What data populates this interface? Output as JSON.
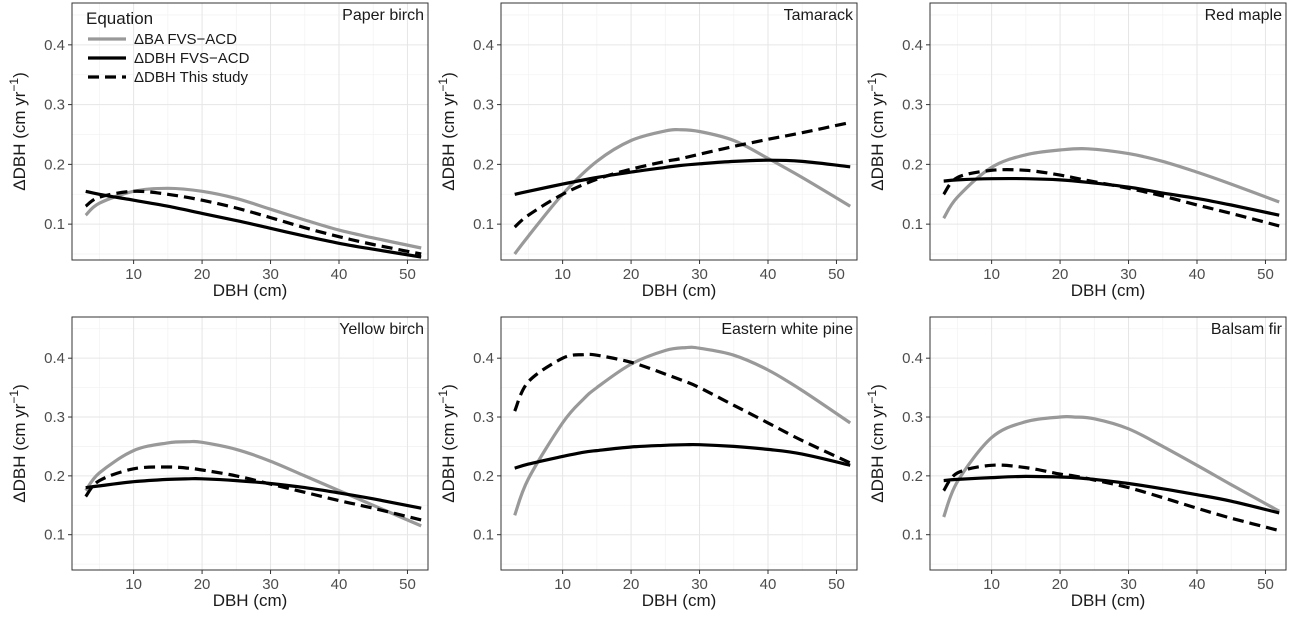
{
  "chart_data": {
    "type": "line",
    "xlabel": "DBH (cm)",
    "ylabel": "ΔDBH (cm yr",
    "ylabel_superscript": "−1",
    "ylabel_suffix": ")",
    "xlim": [
      1,
      53
    ],
    "ylim": [
      0.04,
      0.47
    ],
    "xticks": [
      10,
      20,
      30,
      40,
      50
    ],
    "yticks": [
      0.1,
      0.2,
      0.3,
      0.4
    ],
    "ytick_labels": [
      "0.1",
      "0.2",
      "0.3",
      "0.4"
    ],
    "grid": true,
    "legend": {
      "title": "Equation",
      "placement": "top-left of first panel",
      "entries": [
        {
          "label": "ΔBA FVS−ACD",
          "color": "#999999",
          "style": "solid"
        },
        {
          "label": "ΔDBH FVS−ACD",
          "color": "#000000",
          "style": "solid"
        },
        {
          "label": "ΔDBH This study",
          "color": "#000000",
          "style": "dashed"
        }
      ]
    },
    "panels": [
      {
        "title": "Paper birch",
        "x": [
          3,
          5,
          10,
          15,
          20,
          25,
          30,
          35,
          40,
          45,
          52
        ],
        "series": [
          {
            "name": "ΔBA FVS−ACD",
            "values": [
              0.115,
              0.135,
              0.155,
              0.16,
              0.155,
              0.143,
              0.125,
              0.107,
              0.09,
              0.077,
              0.06
            ]
          },
          {
            "name": "ΔDBH FVS−ACD",
            "values": [
              0.155,
              0.15,
              0.14,
              0.13,
              0.118,
              0.106,
              0.093,
              0.08,
              0.068,
              0.058,
              0.045
            ]
          },
          {
            "name": "ΔDBH This study",
            "values": [
              0.13,
              0.145,
              0.155,
              0.15,
              0.14,
              0.127,
              0.111,
              0.094,
              0.079,
              0.066,
              0.05
            ]
          }
        ]
      },
      {
        "title": "Tamarack",
        "x": [
          3,
          5,
          10,
          15,
          20,
          25,
          27,
          30,
          35,
          40,
          45,
          52
        ],
        "series": [
          {
            "name": "ΔBA FVS−ACD",
            "values": [
              0.05,
              0.08,
              0.15,
              0.205,
              0.24,
              0.256,
              0.258,
              0.255,
              0.24,
              0.21,
              0.178,
              0.13
            ]
          },
          {
            "name": "ΔDBH FVS−ACD",
            "values": [
              0.15,
              0.155,
              0.167,
              0.178,
              0.187,
              0.195,
              0.198,
              0.201,
              0.205,
              0.207,
              0.205,
              0.196
            ]
          },
          {
            "name": "ΔDBH This study",
            "values": [
              0.095,
              0.115,
              0.15,
              0.175,
              0.192,
              0.205,
              0.209,
              0.217,
              0.23,
              0.242,
              0.253,
              0.27
            ]
          }
        ]
      },
      {
        "title": "Red maple",
        "x": [
          3,
          5,
          10,
          15,
          20,
          24,
          30,
          35,
          40,
          45,
          52
        ],
        "series": [
          {
            "name": "ΔBA FVS−ACD",
            "values": [
              0.11,
              0.145,
              0.195,
              0.216,
              0.224,
              0.226,
              0.218,
              0.205,
              0.187,
              0.167,
              0.137
            ]
          },
          {
            "name": "ΔDBH FVS−ACD",
            "values": [
              0.172,
              0.174,
              0.176,
              0.176,
              0.174,
              0.17,
              0.162,
              0.152,
              0.143,
              0.132,
              0.115
            ]
          },
          {
            "name": "ΔDBH This study",
            "values": [
              0.15,
              0.178,
              0.19,
              0.19,
              0.182,
              0.173,
              0.16,
              0.147,
              0.132,
              0.118,
              0.097
            ]
          }
        ]
      },
      {
        "title": "Yellow birch",
        "x": [
          3,
          5,
          10,
          15,
          18,
          20,
          25,
          30,
          35,
          40,
          45,
          52
        ],
        "series": [
          {
            "name": "ΔBA FVS−ACD",
            "values": [
              0.175,
              0.205,
              0.243,
              0.256,
              0.258,
              0.257,
              0.245,
              0.225,
              0.2,
              0.175,
              0.15,
              0.115
            ]
          },
          {
            "name": "ΔDBH FVS−ACD",
            "values": [
              0.18,
              0.183,
              0.19,
              0.194,
              0.195,
              0.195,
              0.192,
              0.187,
              0.18,
              0.171,
              0.161,
              0.145
            ]
          },
          {
            "name": "ΔDBH This study",
            "values": [
              0.165,
              0.192,
              0.212,
              0.215,
              0.213,
              0.21,
              0.2,
              0.186,
              0.172,
              0.158,
              0.145,
              0.125
            ]
          }
        ]
      },
      {
        "title": "Eastern white pine",
        "x": [
          3,
          5,
          10,
          13,
          15,
          20,
          25,
          28,
          30,
          35,
          40,
          45,
          52
        ],
        "series": [
          {
            "name": "ΔBA FVS−ACD",
            "values": [
              0.133,
              0.195,
              0.29,
              0.33,
              0.35,
              0.39,
              0.413,
              0.418,
              0.417,
              0.405,
              0.38,
              0.345,
              0.29
            ]
          },
          {
            "name": "ΔDBH FVS−ACD",
            "values": [
              0.213,
              0.22,
              0.233,
              0.24,
              0.243,
              0.249,
              0.252,
              0.253,
              0.253,
              0.25,
              0.245,
              0.237,
              0.218
            ]
          },
          {
            "name": "ΔDBH This study",
            "values": [
              0.31,
              0.36,
              0.4,
              0.406,
              0.405,
              0.393,
              0.373,
              0.36,
              0.35,
              0.32,
              0.29,
              0.26,
              0.222
            ]
          }
        ]
      },
      {
        "title": "Balsam fir",
        "x": [
          3,
          5,
          10,
          15,
          20,
          22,
          25,
          30,
          35,
          40,
          45,
          52
        ],
        "series": [
          {
            "name": "ΔBA FVS−ACD",
            "values": [
              0.13,
              0.19,
              0.265,
              0.292,
              0.3,
              0.3,
              0.297,
              0.28,
              0.25,
              0.218,
              0.185,
              0.14
            ]
          },
          {
            "name": "ΔDBH FVS−ACD",
            "values": [
              0.192,
              0.194,
              0.197,
              0.199,
              0.198,
              0.197,
              0.194,
              0.187,
              0.178,
              0.168,
              0.157,
              0.137
            ]
          },
          {
            "name": "ΔDBH This study",
            "values": [
              0.175,
              0.205,
              0.218,
              0.214,
              0.203,
              0.2,
              0.193,
              0.18,
              0.163,
              0.145,
              0.128,
              0.107
            ]
          }
        ]
      }
    ]
  }
}
